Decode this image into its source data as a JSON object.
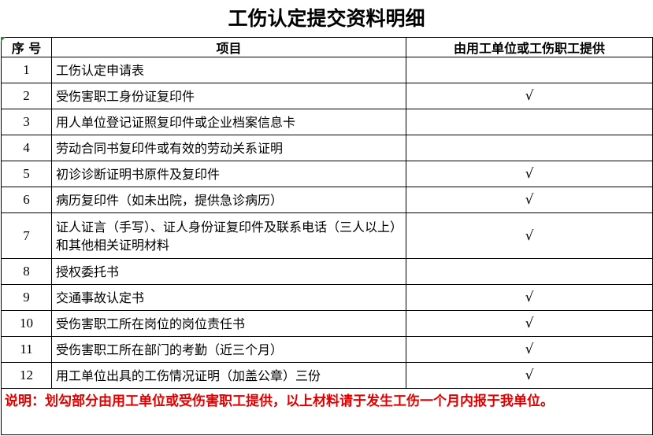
{
  "title": "工伤认定提交资料明细",
  "headers": {
    "no": "序 号",
    "item": "项目",
    "provider": "由用工单位或工伤职工提供"
  },
  "rows": [
    {
      "no": "1",
      "item": "工伤认定申请表",
      "check": ""
    },
    {
      "no": "2",
      "item": "受伤害职工身份证复印件",
      "check": "√"
    },
    {
      "no": "3",
      "item": "用人单位登记证照复印件或企业档案信息卡",
      "check": ""
    },
    {
      "no": "4",
      "item": "劳动合同书复印件或有效的劳动关系证明",
      "check": ""
    },
    {
      "no": "5",
      "item": "初诊诊断证明书原件及复印件",
      "check": "√"
    },
    {
      "no": "6",
      "item": "病历复印件（如未出院，提供急诊病历）",
      "check": "√"
    },
    {
      "no": "7",
      "item": "证人证言（手写）、证人身份证复印件及联系电话（三人以上）和其他相关证明材料",
      "check": "√"
    },
    {
      "no": "8",
      "item": "授权委托书",
      "check": ""
    },
    {
      "no": "9",
      "item": "交通事故认定书",
      "check": "√"
    },
    {
      "no": "10",
      "item": "受伤害职工所在岗位的岗位责任书",
      "check": "√"
    },
    {
      "no": "11",
      "item": "受伤害职工所在部门的考勤（近三个月）",
      "check": "√"
    },
    {
      "no": "12",
      "item": "用工单位出具的工伤情况证明（加盖公章）三份",
      "check": "√"
    }
  ],
  "note": "说明：划勾部分由用工单位或受伤害职工提供，以上材料请于发生工伤一个月内报于我单位。",
  "colors": {
    "note": "#e00000",
    "border": "#000000"
  }
}
